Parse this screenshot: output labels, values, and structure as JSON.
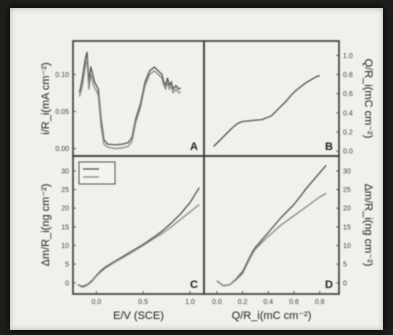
{
  "chart_data": [
    {
      "panel": "A",
      "type": "line",
      "ylabel": "i/R_i(mA cm⁻²)",
      "y_ticks": [
        "0.10",
        "0.05",
        "0.00"
      ],
      "xlim": [
        -0.25,
        1.15
      ],
      "ylim": [
        -0.01,
        0.145
      ],
      "series": [
        {
          "x": [
            -0.18,
            -0.15,
            -0.12,
            -0.1,
            -0.08,
            -0.06,
            -0.04,
            -0.02,
            0.0,
            0.02,
            0.05,
            0.08,
            0.12,
            0.2,
            0.28,
            0.34,
            0.38,
            0.42,
            0.47,
            0.52,
            0.57,
            0.62,
            0.66,
            0.7,
            0.72,
            0.74,
            0.76,
            0.78,
            0.8,
            0.82,
            0.85,
            0.88,
            0.9
          ],
          "y": [
            0.075,
            0.095,
            0.12,
            0.13,
            0.09,
            0.11,
            0.1,
            0.09,
            0.085,
            0.08,
            0.04,
            0.012,
            0.006,
            0.005,
            0.006,
            0.008,
            0.015,
            0.04,
            0.06,
            0.09,
            0.105,
            0.11,
            0.105,
            0.1,
            0.09,
            0.085,
            0.095,
            0.085,
            0.09,
            0.08,
            0.085,
            0.08,
            0.082
          ]
        },
        {
          "x": [
            -0.18,
            -0.15,
            -0.12,
            -0.1,
            -0.08,
            -0.06,
            -0.04,
            -0.02,
            0.0,
            0.02,
            0.05,
            0.08,
            0.12,
            0.2,
            0.28,
            0.34,
            0.38,
            0.42,
            0.47,
            0.52,
            0.57,
            0.62,
            0.66,
            0.7,
            0.72,
            0.74,
            0.76,
            0.78,
            0.8,
            0.82,
            0.85,
            0.88,
            0.9
          ],
          "y": [
            0.07,
            0.085,
            0.11,
            0.12,
            0.08,
            0.1,
            0.09,
            0.082,
            0.078,
            0.072,
            0.03,
            0.006,
            0.002,
            0.0,
            0.001,
            0.003,
            0.01,
            0.035,
            0.055,
            0.085,
            0.1,
            0.105,
            0.1,
            0.095,
            0.085,
            0.08,
            0.09,
            0.08,
            0.085,
            0.075,
            0.08,
            0.075,
            0.077
          ]
        }
      ]
    },
    {
      "panel": "B",
      "type": "line",
      "ylabel": "Q/R_i(mC cm⁻²)",
      "y_ticks": [
        "1.0",
        "0.8",
        "0.6",
        "0.4",
        "0.2",
        "0.0"
      ],
      "xlim": [
        -0.25,
        1.15
      ],
      "ylim": [
        -0.05,
        1.15
      ],
      "series": [
        {
          "x": [
            -0.15,
            -0.1,
            -0.05,
            0.0,
            0.05,
            0.1,
            0.15,
            0.25,
            0.35,
            0.45,
            0.55,
            0.6,
            0.65,
            0.7,
            0.75,
            0.8,
            0.85,
            0.9,
            0.95
          ],
          "y": [
            0.05,
            0.1,
            0.15,
            0.2,
            0.25,
            0.29,
            0.31,
            0.32,
            0.33,
            0.37,
            0.47,
            0.52,
            0.58,
            0.63,
            0.67,
            0.71,
            0.74,
            0.77,
            0.79
          ]
        }
      ]
    },
    {
      "panel": "C",
      "type": "line",
      "xlabel": "E/V (SCE)",
      "ylabel": "Δm/R_i(ng cm⁻²)",
      "x_ticks": [
        "0.0",
        "0.5",
        "1.0"
      ],
      "y_ticks": [
        "30",
        "25",
        "20",
        "15",
        "10",
        "5",
        "0"
      ],
      "xlim": [
        -0.25,
        1.15
      ],
      "ylim": [
        -3,
        34
      ],
      "legend": "top-left",
      "series": [
        {
          "x": [
            -0.2,
            -0.15,
            -0.1,
            -0.05,
            0.0,
            0.05,
            0.1,
            0.2,
            0.3,
            0.4,
            0.5,
            0.6,
            0.7,
            0.8,
            0.9,
            1.0,
            1.05,
            1.1
          ],
          "y": [
            -0.5,
            -1.0,
            -0.5,
            0.5,
            2.0,
            3.3,
            4.3,
            5.8,
            7.3,
            8.8,
            10.3,
            12.0,
            13.8,
            16.0,
            18.5,
            21.5,
            23.5,
            25.5
          ]
        },
        {
          "x": [
            -0.2,
            -0.15,
            -0.1,
            -0.05,
            0.0,
            0.05,
            0.1,
            0.2,
            0.3,
            0.4,
            0.5,
            0.6,
            0.7,
            0.8,
            0.9,
            1.0,
            1.05,
            1.1
          ],
          "y": [
            -0.5,
            -1.2,
            -0.7,
            0.3,
            1.8,
            3.0,
            4.0,
            5.6,
            7.0,
            8.5,
            10.0,
            11.6,
            13.2,
            15.0,
            17.0,
            19.0,
            20.0,
            21.0
          ]
        }
      ]
    },
    {
      "panel": "D",
      "type": "line",
      "xlabel": "Q/R_i(mC cm⁻²)",
      "ylabel": "Δm/R_i(ng cm⁻²)",
      "x_ticks": [
        "0.0",
        "0.2",
        "0.4",
        "0.6",
        "0.8"
      ],
      "y_ticks": [
        "30",
        "25",
        "20",
        "15",
        "10",
        "5",
        "0"
      ],
      "xlim": [
        -0.1,
        0.95
      ],
      "ylim": [
        -3,
        34
      ],
      "series": [
        {
          "x": [
            0.0,
            0.05,
            0.1,
            0.15,
            0.2,
            0.25,
            0.28,
            0.3,
            0.35,
            0.4,
            0.5,
            0.6,
            0.7,
            0.8,
            0.85
          ],
          "y": [
            0.5,
            -0.8,
            -0.5,
            1.0,
            3.0,
            6.5,
            8.5,
            9.5,
            11.5,
            13.5,
            17.5,
            21.0,
            25.5,
            29.5,
            31.5
          ]
        },
        {
          "x": [
            0.0,
            0.05,
            0.1,
            0.15,
            0.2,
            0.25,
            0.28,
            0.3,
            0.35,
            0.4,
            0.5,
            0.6,
            0.7,
            0.8,
            0.85
          ],
          "y": [
            0.5,
            -0.8,
            -0.5,
            0.8,
            2.5,
            6.0,
            8.0,
            9.0,
            10.8,
            12.5,
            15.5,
            18.0,
            20.5,
            23.0,
            24.0
          ]
        }
      ]
    }
  ]
}
